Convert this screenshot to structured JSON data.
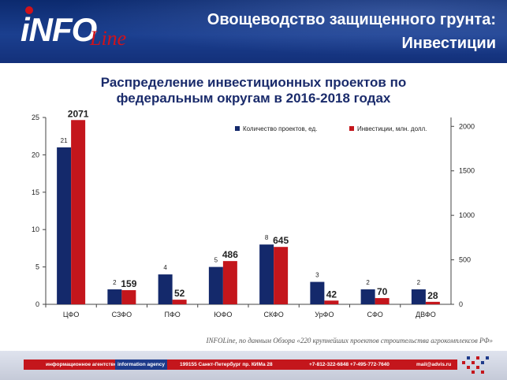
{
  "header": {
    "logo_main": "iNFO",
    "logo_script": "Line",
    "title_line1": "Овощеводство защищенного грунта:",
    "title_line2": "Инвестиции"
  },
  "chart_title_line1": "Распределение инвестиционных проектов по",
  "chart_title_line2": "федеральным округам в 2016-2018 годах",
  "source": "INFOLine, по данным Обзора «220 крупнейших проектов строительства агрокомплексов РФ»",
  "footer": {
    "agency_ru": "информационное агентство",
    "agency_en": "information agency",
    "address": "199155 Санкт-Петербург пр. КИМа 28",
    "phones": "+7-812-322-6848  +7-495-772-7640",
    "email": "mail@advis.ru"
  },
  "colors": {
    "projects": "#14296b",
    "investments": "#c4161c",
    "header_bg": "#13307a"
  },
  "chart_data": {
    "type": "bar",
    "categories": [
      "ЦФО",
      "СЗФО",
      "ПФО",
      "ЮФО",
      "СКФО",
      "УрФО",
      "СФО",
      "ДВФО"
    ],
    "series": [
      {
        "name": "Количество проектов, ед.",
        "axis": "left",
        "values": [
          21,
          2,
          4,
          5,
          8,
          3,
          2,
          2
        ]
      },
      {
        "name": "Инвестиции, млн. долл.",
        "axis": "right",
        "values": [
          2071,
          159,
          52,
          486,
          645,
          42,
          70,
          28
        ]
      }
    ],
    "y_left": {
      "min": 0,
      "max": 25,
      "ticks": [
        0,
        5,
        10,
        15,
        20,
        25
      ]
    },
    "y_right": {
      "min": 0,
      "max": 2100,
      "ticks": [
        0,
        500,
        1000,
        1500,
        2000
      ]
    },
    "grid": false,
    "legend_position": "top-right"
  }
}
